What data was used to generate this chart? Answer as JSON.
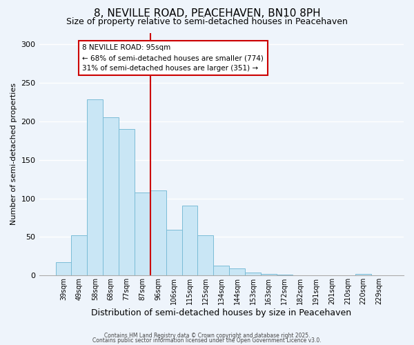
{
  "title": "8, NEVILLE ROAD, PEACEHAVEN, BN10 8PH",
  "subtitle": "Size of property relative to semi-detached houses in Peacehaven",
  "xlabel": "Distribution of semi-detached houses by size in Peacehaven",
  "ylabel": "Number of semi-detached properties",
  "bar_labels": [
    "39sqm",
    "49sqm",
    "58sqm",
    "68sqm",
    "77sqm",
    "87sqm",
    "96sqm",
    "106sqm",
    "115sqm",
    "125sqm",
    "134sqm",
    "144sqm",
    "153sqm",
    "163sqm",
    "172sqm",
    "182sqm",
    "191sqm",
    "201sqm",
    "210sqm",
    "220sqm",
    "229sqm"
  ],
  "bar_values": [
    17,
    52,
    229,
    205,
    190,
    108,
    110,
    59,
    91,
    52,
    13,
    9,
    4,
    2,
    1,
    0,
    0,
    0,
    0,
    2,
    0
  ],
  "bar_color": "#c9e6f5",
  "bar_edge_color": "#7abcd6",
  "property_line_x": 5.5,
  "property_line_label": "8 NEVILLE ROAD: 95sqm",
  "annotation_smaller": "← 68% of semi-detached houses are smaller (774)",
  "annotation_larger": "31% of semi-detached houses are larger (351) →",
  "annotation_box_facecolor": "#ffffff",
  "annotation_box_edge": "#cc0000",
  "line_color": "#cc0000",
  "ylim": [
    0,
    315
  ],
  "yticks": [
    0,
    50,
    100,
    150,
    200,
    250,
    300
  ],
  "footer1": "Contains HM Land Registry data © Crown copyright and database right 2025.",
  "footer2": "Contains public sector information licensed under the Open Government Licence v3.0.",
  "bg_color": "#eef4fb",
  "grid_color": "#ffffff",
  "title_fontsize": 11,
  "subtitle_fontsize": 9,
  "annotation_fontsize": 7.5,
  "ylabel_fontsize": 8,
  "xlabel_fontsize": 9,
  "tick_fontsize": 7,
  "footer_fontsize": 5.5
}
